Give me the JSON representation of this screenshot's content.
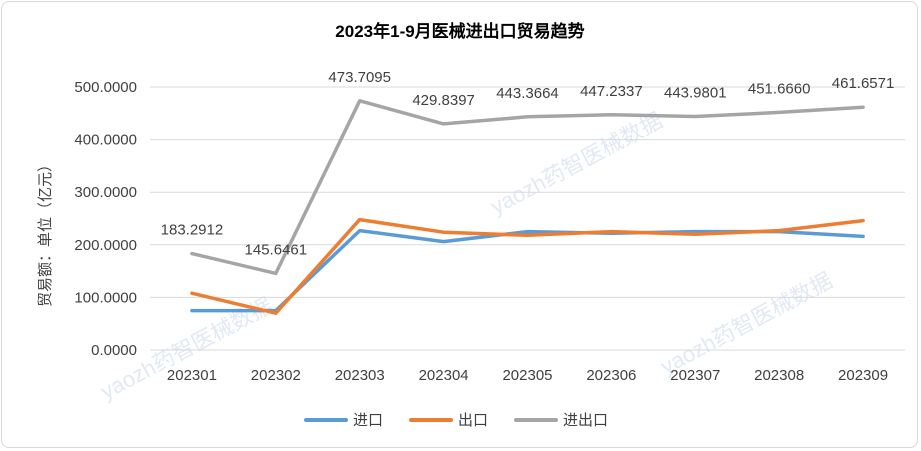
{
  "chart_data": {
    "type": "line",
    "title": "2023年1-9月医械进出口贸易趋势",
    "ylabel": "贸易额：单位（亿元）",
    "xlabel": "",
    "categories": [
      "202301",
      "202302",
      "202303",
      "202304",
      "202305",
      "202306",
      "202307",
      "202308",
      "202309"
    ],
    "ylim": [
      0,
      500
    ],
    "yticks": [
      "0.0000",
      "100.0000",
      "200.0000",
      "300.0000",
      "400.0000",
      "500.0000"
    ],
    "grid": true,
    "legend_position": "bottom",
    "series": [
      {
        "name": "进口",
        "color": "#5b9bd5",
        "values": [
          75,
          75,
          227,
          206,
          225,
          222,
          225,
          225,
          216
        ]
      },
      {
        "name": "出口",
        "color": "#ed7d31",
        "values": [
          108,
          70,
          248,
          224,
          218,
          225,
          220,
          227,
          246
        ]
      },
      {
        "name": "进出口",
        "color": "#a5a5a5",
        "values": [
          183.2912,
          145.6461,
          473.7095,
          429.8397,
          443.3664,
          447.2337,
          443.9801,
          451.666,
          461.6571
        ],
        "data_labels": [
          "183.2912",
          "145.6461",
          "473.7095",
          "429.8397",
          "443.3664",
          "447.2337",
          "443.9801",
          "451.6660",
          "461.6571"
        ]
      }
    ],
    "watermark": "yaozh药智医械数据"
  }
}
